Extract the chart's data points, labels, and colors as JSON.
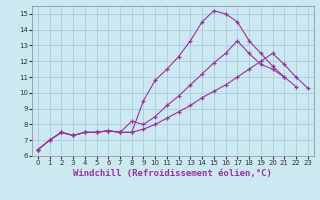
{
  "background_color": "#cce8f0",
  "grid_color": "#aaccdd",
  "line_color": "#993399",
  "marker": "+",
  "xlabel": "Windchill (Refroidissement éolien,°C)",
  "xlabel_fontsize": 6.5,
  "xlim": [
    -0.5,
    23.5
  ],
  "ylim": [
    6,
    15.5
  ],
  "yticks": [
    6,
    7,
    8,
    9,
    10,
    11,
    12,
    13,
    14,
    15
  ],
  "xticks": [
    0,
    1,
    2,
    3,
    4,
    5,
    6,
    7,
    8,
    9,
    10,
    11,
    12,
    13,
    14,
    15,
    16,
    17,
    18,
    19,
    20,
    21,
    22,
    23
  ],
  "curve1_x": [
    0,
    1,
    2,
    3,
    4,
    5,
    6,
    7,
    8,
    9,
    10,
    11,
    12,
    13,
    14,
    15,
    16,
    17,
    18,
    19,
    20,
    21
  ],
  "curve1_y": [
    6.4,
    7.0,
    7.5,
    7.3,
    7.5,
    7.5,
    7.6,
    7.5,
    7.5,
    9.5,
    10.8,
    11.5,
    12.3,
    13.3,
    14.5,
    15.2,
    15.0,
    14.5,
    13.3,
    12.5,
    11.7,
    11.0
  ],
  "curve2_x": [
    0,
    1,
    2,
    3,
    4,
    5,
    6,
    7,
    8,
    9,
    10,
    11,
    12,
    13,
    14,
    15,
    16,
    17,
    18,
    19,
    20,
    21,
    22
  ],
  "curve2_y": [
    6.4,
    7.0,
    7.5,
    7.3,
    7.5,
    7.5,
    7.6,
    7.5,
    8.2,
    8.0,
    8.5,
    9.2,
    9.8,
    10.5,
    11.2,
    11.9,
    12.5,
    13.3,
    12.5,
    11.8,
    11.5,
    11.0,
    10.4
  ],
  "curve3_x": [
    0,
    1,
    2,
    3,
    4,
    5,
    6,
    7,
    8,
    9,
    10,
    11,
    12,
    13,
    14,
    15,
    16,
    17,
    18,
    19,
    20,
    21,
    22,
    23
  ],
  "curve3_y": [
    6.4,
    7.0,
    7.5,
    7.3,
    7.5,
    7.5,
    7.6,
    7.5,
    7.5,
    7.7,
    8.0,
    8.4,
    8.8,
    9.2,
    9.7,
    10.1,
    10.5,
    11.0,
    11.5,
    12.0,
    12.5,
    11.8,
    11.0,
    10.3
  ]
}
